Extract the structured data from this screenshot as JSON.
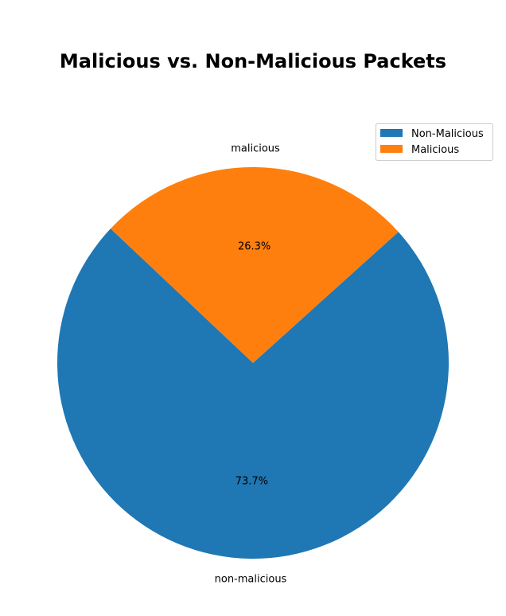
{
  "chart_data": {
    "type": "pie",
    "title": "Malicious vs. Non-Malicious Packets",
    "categories": [
      "non-malicious",
      "malicious"
    ],
    "values": [
      73.7,
      26.3
    ],
    "percent_labels": [
      "73.7%",
      "26.3%"
    ],
    "colors": [
      "#1f77b4",
      "#ff7f0e"
    ],
    "legend": {
      "placement": "top-right",
      "entries": [
        "Non-Malicious",
        "Malicious"
      ]
    }
  }
}
